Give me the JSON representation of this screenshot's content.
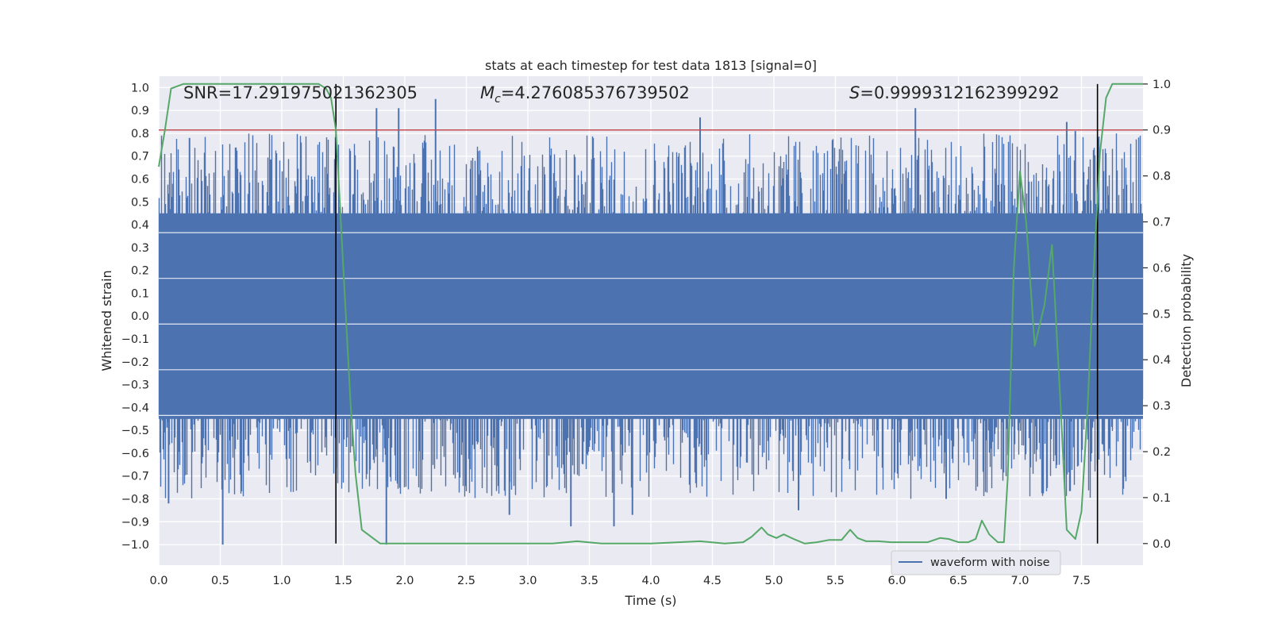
{
  "chart_data": {
    "type": "line",
    "title": "stats at each timestep for test data 1813 [signal=0]",
    "xlabel": "Time (s)",
    "ylabel_left": "Whitened strain",
    "ylabel_right": "Detection probability",
    "xlim": [
      0.0,
      8.0
    ],
    "ylim_left": [
      -1.09,
      1.05
    ],
    "ylim_right": [
      -0.047,
      1.017
    ],
    "xticks": [
      0.0,
      0.5,
      1.0,
      1.5,
      2.0,
      2.5,
      3.0,
      3.5,
      4.0,
      4.5,
      5.0,
      5.5,
      6.0,
      6.5,
      7.0,
      7.5
    ],
    "xtick_labels": [
      "0.0",
      "0.5",
      "1.0",
      "1.5",
      "2.0",
      "2.5",
      "3.0",
      "3.5",
      "4.0",
      "4.5",
      "5.0",
      "5.5",
      "6.0",
      "6.5",
      "7.0",
      "7.5"
    ],
    "yticks_left": [
      1.0,
      0.9,
      0.8,
      0.7,
      0.6,
      0.5,
      0.4,
      0.3,
      0.2,
      0.1,
      0.0,
      -0.1,
      -0.2,
      -0.3,
      -0.4,
      -0.5,
      -0.6,
      -0.7,
      -0.8,
      -0.9,
      -1.0
    ],
    "ytick_labels_left": [
      "1.0",
      "0.9",
      "0.8",
      "0.7",
      "0.6",
      "0.5",
      "0.4",
      "0.3",
      "0.2",
      "0.1",
      "0.0",
      "−0.1",
      "−0.2",
      "−0.3",
      "−0.4",
      "−0.5",
      "−0.6",
      "−0.7",
      "−0.8",
      "−0.9",
      "−1.0"
    ],
    "yticks_right": [
      1.0,
      0.9,
      0.8,
      0.7,
      0.6,
      0.5,
      0.4,
      0.3,
      0.2,
      0.1,
      0.0
    ],
    "ytick_labels_right": [
      "1.0",
      "0.9",
      "0.8",
      "0.7",
      "0.6",
      "0.5",
      "0.4",
      "0.3",
      "0.2",
      "0.1",
      "0.0"
    ],
    "annotations": {
      "snr": "SNR=17.291975021362305",
      "mc_symbol": "M",
      "mc_subscript": "c",
      "mc_value": "=4.276085376739502",
      "s_symbol": "S",
      "s_value": "=0.9999312162399292"
    },
    "threshold_right": 0.9,
    "vertical_lines_x": [
      1.44,
      7.63
    ],
    "legend": {
      "label": "waveform with noise",
      "placement": "lower-right"
    },
    "series": [
      {
        "name": "waveform with noise",
        "axis": "left",
        "color": "#4c72b0",
        "envelope_description": "dense noise oscillating between about -1.0 and 0.95",
        "notable_peaks": [
          {
            "x": 0.25,
            "y": 0.78
          },
          {
            "x": 1.77,
            "y": 0.91
          },
          {
            "x": 1.95,
            "y": 0.91
          },
          {
            "x": 2.25,
            "y": 0.95
          },
          {
            "x": 4.4,
            "y": 0.87
          },
          {
            "x": 6.15,
            "y": 0.91
          },
          {
            "x": 7.38,
            "y": 0.85
          },
          {
            "x": 7.45,
            "y": 0.81
          }
        ],
        "notable_troughs": [
          {
            "x": 0.08,
            "y": -0.82
          },
          {
            "x": 0.52,
            "y": -1.0
          },
          {
            "x": 1.85,
            "y": -1.0
          },
          {
            "x": 2.85,
            "y": -0.87
          },
          {
            "x": 3.35,
            "y": -0.92
          },
          {
            "x": 3.7,
            "y": -0.92
          },
          {
            "x": 3.85,
            "y": -0.87
          },
          {
            "x": 5.2,
            "y": -0.85
          },
          {
            "x": 6.4,
            "y": -0.8
          }
        ]
      },
      {
        "name": "detection probability",
        "axis": "right",
        "color": "#55a868",
        "x": [
          0.0,
          0.05,
          0.1,
          0.2,
          0.3,
          0.4,
          0.6,
          0.8,
          1.0,
          1.1,
          1.2,
          1.3,
          1.36,
          1.4,
          1.44,
          1.48,
          1.52,
          1.56,
          1.6,
          1.65,
          1.7,
          1.8,
          1.9,
          2.0,
          2.1,
          2.2,
          2.5,
          2.8,
          3.0,
          3.2,
          3.4,
          3.6,
          4.0,
          4.4,
          4.6,
          4.75,
          4.82,
          4.9,
          4.95,
          5.02,
          5.08,
          5.16,
          5.25,
          5.35,
          5.45,
          5.55,
          5.62,
          5.68,
          5.75,
          5.85,
          5.95,
          6.1,
          6.25,
          6.35,
          6.42,
          6.5,
          6.58,
          6.64,
          6.69,
          6.75,
          6.82,
          6.87,
          6.9,
          6.95,
          7.0,
          7.05,
          7.12,
          7.2,
          7.26,
          7.33,
          7.38,
          7.45,
          7.5,
          7.55,
          7.6,
          7.65,
          7.7,
          7.75,
          7.8,
          7.9,
          8.0
        ],
        "values": [
          0.82,
          0.9,
          0.99,
          1.0,
          1.0,
          1.0,
          1.0,
          1.0,
          1.0,
          1.0,
          1.0,
          1.0,
          0.99,
          0.97,
          0.9,
          0.7,
          0.5,
          0.3,
          0.15,
          0.03,
          0.02,
          0.0,
          0.0,
          0.0,
          0.0,
          0.0,
          0.0,
          0.0,
          0.0,
          0.0,
          0.005,
          0.0,
          0.0,
          0.005,
          0.0,
          0.003,
          0.015,
          0.035,
          0.02,
          0.012,
          0.02,
          0.01,
          0.0,
          0.003,
          0.008,
          0.008,
          0.03,
          0.012,
          0.005,
          0.005,
          0.003,
          0.003,
          0.003,
          0.012,
          0.01,
          0.003,
          0.003,
          0.01,
          0.05,
          0.02,
          0.003,
          0.003,
          0.14,
          0.6,
          0.81,
          0.7,
          0.43,
          0.52,
          0.65,
          0.3,
          0.03,
          0.01,
          0.07,
          0.3,
          0.6,
          0.85,
          0.97,
          1.0,
          1.0,
          1.0,
          1.0
        ]
      }
    ]
  }
}
